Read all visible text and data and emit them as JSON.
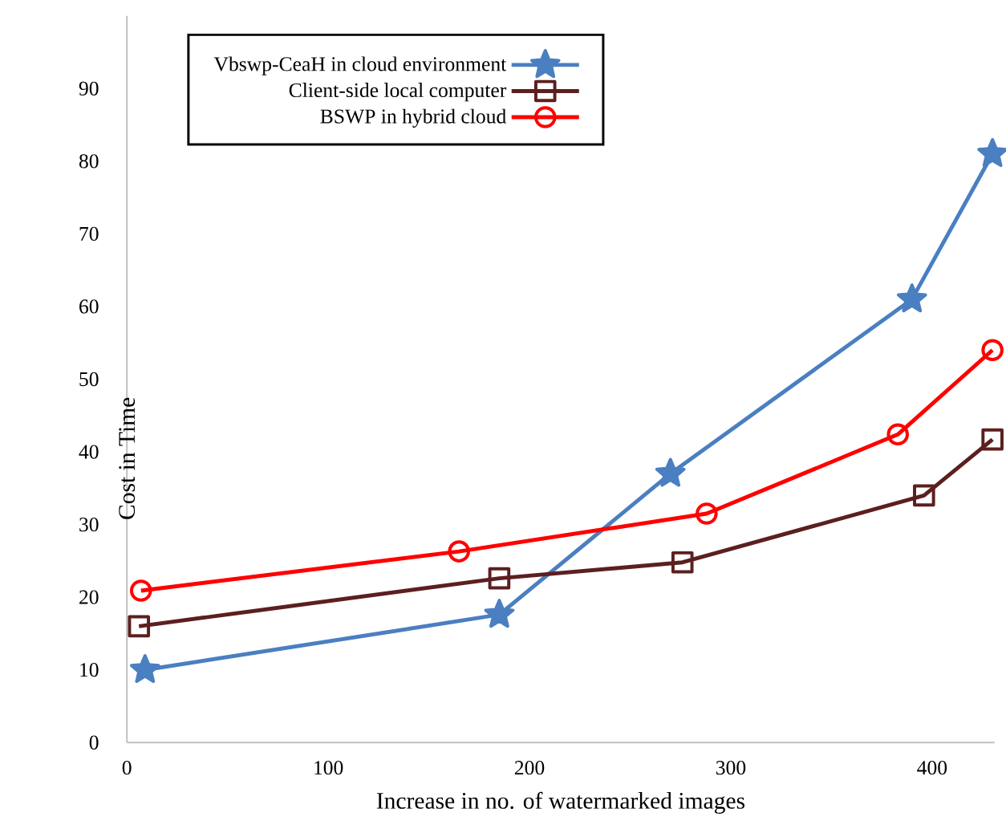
{
  "chart_data": {
    "type": "line",
    "xlabel": "Increase in no. of watermarked images",
    "ylabel": "Cost in Time",
    "xlim": [
      0,
      431
    ],
    "ylim": [
      0,
      100
    ],
    "xticks": [
      0,
      100,
      200,
      300,
      400
    ],
    "yticks": [
      0,
      10,
      20,
      30,
      40,
      50,
      60,
      70,
      80,
      90
    ],
    "legend": "top left",
    "grid": false,
    "series": [
      {
        "name": "Vbswp-CeaH in cloud environment",
        "color": "#4a7fc1",
        "marker": "star",
        "x": [
          9,
          185,
          270,
          390,
          430
        ],
        "values": [
          10,
          17.6,
          37,
          61,
          81
        ]
      },
      {
        "name": "Client-side local computer",
        "color": "#5c1f1f",
        "marker": "square",
        "x": [
          6,
          185,
          276,
          396,
          430
        ],
        "values": [
          16,
          22.6,
          24.8,
          34,
          41.7
        ]
      },
      {
        "name": "BSWP in hybrid cloud",
        "color": "#ff0000",
        "marker": "circle",
        "x": [
          7,
          165,
          288,
          383,
          430
        ],
        "values": [
          20.9,
          26.3,
          31.5,
          42.4,
          54
        ]
      }
    ]
  }
}
